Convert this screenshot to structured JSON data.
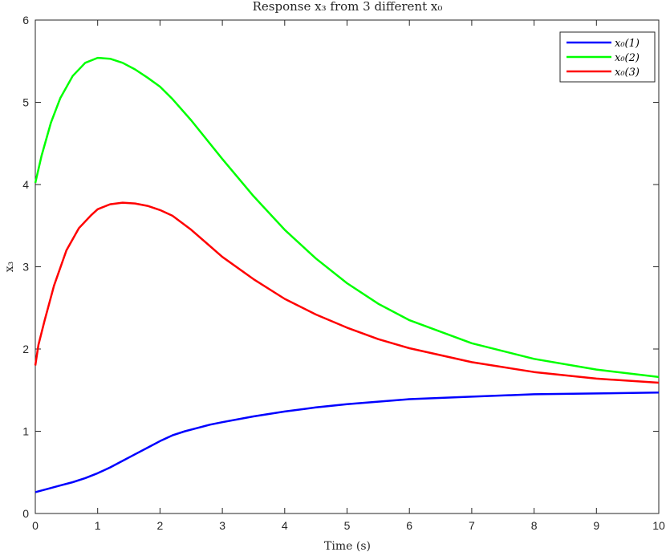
{
  "chart_data": {
    "type": "line",
    "title": "Response x₃ from 3 different x₀",
    "xlabel": "Time (s)",
    "ylabel": "x₃",
    "xlim": [
      0,
      10
    ],
    "ylim": [
      0,
      6
    ],
    "xticks": [
      0,
      1,
      2,
      3,
      4,
      5,
      6,
      7,
      8,
      9,
      10
    ],
    "yticks": [
      0,
      1,
      2,
      3,
      4,
      5,
      6
    ],
    "grid": false,
    "legend_position": "top-right",
    "series": [
      {
        "name": "x₀(1)",
        "color": "#0000ff",
        "x": [
          0,
          0.2,
          0.4,
          0.6,
          0.8,
          1.0,
          1.2,
          1.4,
          1.6,
          1.8,
          2.0,
          2.2,
          2.4,
          2.6,
          2.8,
          3.0,
          3.5,
          4.0,
          4.5,
          5.0,
          5.5,
          6.0,
          7.0,
          8.0,
          9.0,
          10.0
        ],
        "values": [
          0.26,
          0.3,
          0.34,
          0.38,
          0.43,
          0.49,
          0.56,
          0.64,
          0.72,
          0.8,
          0.88,
          0.95,
          1.0,
          1.04,
          1.08,
          1.11,
          1.18,
          1.24,
          1.29,
          1.33,
          1.36,
          1.39,
          1.42,
          1.45,
          1.46,
          1.47
        ]
      },
      {
        "name": "x₀(2)",
        "color": "#00ff00",
        "x": [
          0,
          0.1,
          0.25,
          0.4,
          0.6,
          0.8,
          1.0,
          1.2,
          1.4,
          1.6,
          1.8,
          2.0,
          2.2,
          2.5,
          3.0,
          3.5,
          4.0,
          4.5,
          5.0,
          5.5,
          6.0,
          7.0,
          8.0,
          9.0,
          10.0
        ],
        "values": [
          4.02,
          4.35,
          4.75,
          5.05,
          5.32,
          5.48,
          5.54,
          5.53,
          5.48,
          5.4,
          5.3,
          5.19,
          5.04,
          4.78,
          4.31,
          3.86,
          3.45,
          3.1,
          2.8,
          2.55,
          2.35,
          2.07,
          1.88,
          1.75,
          1.66
        ]
      },
      {
        "name": "x₀(3)",
        "color": "#ff0000",
        "x": [
          0,
          0.05,
          0.15,
          0.3,
          0.5,
          0.7,
          0.9,
          1.0,
          1.2,
          1.4,
          1.6,
          1.8,
          2.0,
          2.2,
          2.5,
          3.0,
          3.5,
          4.0,
          4.5,
          5.0,
          5.5,
          6.0,
          7.0,
          8.0,
          9.0,
          10.0
        ],
        "values": [
          1.8,
          2.05,
          2.35,
          2.77,
          3.2,
          3.47,
          3.63,
          3.7,
          3.76,
          3.78,
          3.77,
          3.74,
          3.69,
          3.62,
          3.45,
          3.12,
          2.85,
          2.61,
          2.42,
          2.26,
          2.12,
          2.01,
          1.84,
          1.72,
          1.64,
          1.59
        ]
      }
    ]
  }
}
